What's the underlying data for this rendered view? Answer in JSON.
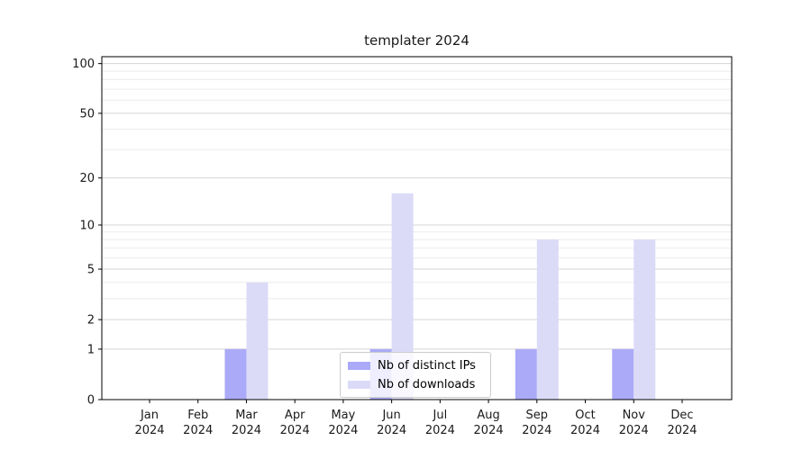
{
  "figure": {
    "background": "#ffffff"
  },
  "chart_data": {
    "type": "bar",
    "title": "templater 2024",
    "categories": [
      "Jan 2024",
      "Feb 2024",
      "Mar 2024",
      "Apr 2024",
      "May 2024",
      "Jun 2024",
      "Jul 2024",
      "Aug 2024",
      "Sep 2024",
      "Oct 2024",
      "Nov 2024",
      "Dec 2024"
    ],
    "series": [
      {
        "name": "Nb of distinct IPs",
        "color": "#aaaaf8",
        "values": [
          0,
          0,
          1,
          0,
          0,
          1,
          0,
          0,
          1,
          0,
          1,
          0
        ]
      },
      {
        "name": "Nb of downloads",
        "color": "#dbdbf8",
        "values": [
          0,
          0,
          4,
          0,
          0,
          16,
          0,
          0,
          8,
          0,
          8,
          0
        ]
      }
    ],
    "yscale": "log1p",
    "ylim": [
      0,
      110
    ],
    "y_ticks": [
      0,
      1,
      2,
      5,
      10,
      20,
      50,
      100
    ],
    "y_minor_ticks": [
      3,
      4,
      6,
      7,
      8,
      9,
      30,
      40,
      60,
      70,
      80,
      90
    ],
    "grid": "horizontal",
    "legend_position": "bottom-center",
    "colors": {
      "grid_major": "#d4d4d4",
      "grid_minor": "#ebebeb",
      "axis": "#000000",
      "text": "#1a1a1a"
    }
  }
}
